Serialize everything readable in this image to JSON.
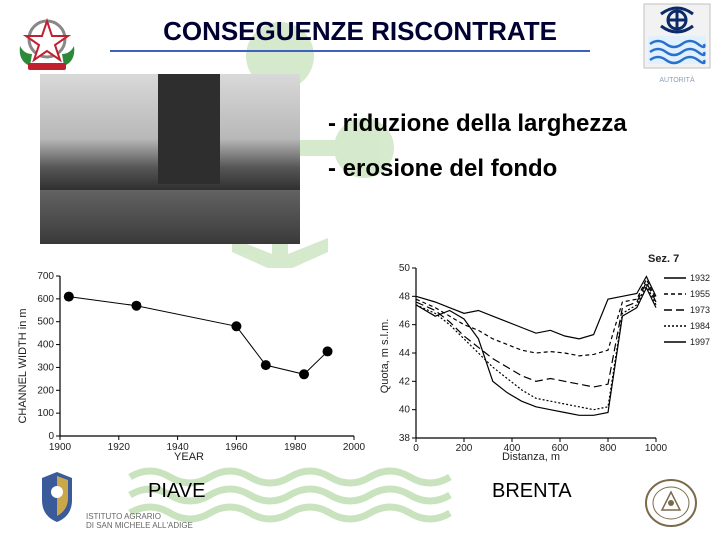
{
  "title": "CONSEGUENZE RISCONTRATE",
  "bullets": [
    "- riduzione della larghezza",
    "- erosione del fondo"
  ],
  "captions": {
    "left": "PIAVE",
    "right": "BRENTA"
  },
  "footer_text": "ISTITUTO AGRARIO\nDI SAN MICHELE ALL'ADIGE",
  "chart_left": {
    "type": "scatter-line",
    "xlabel": "YEAR",
    "ylabel": "CHANNEL WIDTH in m",
    "xlim": [
      1900,
      2000
    ],
    "ylim": [
      0,
      700
    ],
    "xtick_step": 20,
    "ytick_step": 100,
    "grid": false,
    "marker": "circle",
    "marker_size": 5,
    "marker_color": "#000000",
    "line_color": "#000000",
    "line_width": 1,
    "background_color": "#ffffff",
    "points": [
      {
        "x": 1903,
        "y": 610
      },
      {
        "x": 1926,
        "y": 570
      },
      {
        "x": 1960,
        "y": 480
      },
      {
        "x": 1970,
        "y": 310
      },
      {
        "x": 1983,
        "y": 270
      },
      {
        "x": 1991,
        "y": 370
      }
    ]
  },
  "chart_right": {
    "type": "line-multi",
    "title_right": "Sez. 7",
    "xlabel": "Distanza, m",
    "ylabel": "Quota, m s.l.m.",
    "xlim": [
      0,
      1000
    ],
    "ylim": [
      38,
      50
    ],
    "xtick_step": 200,
    "ytick_step": 2,
    "grid": false,
    "background_color": "#ffffff",
    "line_width": 1.2,
    "series": [
      {
        "label": "1932",
        "color": "#000000",
        "dash": "none",
        "points": [
          [
            0,
            48
          ],
          [
            80,
            47.6
          ],
          [
            140,
            47.2
          ],
          [
            200,
            46.8
          ],
          [
            260,
            47.0
          ],
          [
            320,
            46.6
          ],
          [
            380,
            46.2
          ],
          [
            440,
            45.8
          ],
          [
            500,
            45.4
          ],
          [
            560,
            45.6
          ],
          [
            620,
            45.2
          ],
          [
            680,
            45.0
          ],
          [
            740,
            45.3
          ],
          [
            800,
            47.8
          ],
          [
            860,
            48.0
          ],
          [
            920,
            48.2
          ],
          [
            960,
            49.4
          ],
          [
            1000,
            48.0
          ]
        ]
      },
      {
        "label": "1955",
        "color": "#000000",
        "dash": "4,3",
        "points": [
          [
            0,
            47.8
          ],
          [
            80,
            47.2
          ],
          [
            140,
            46.6
          ],
          [
            200,
            46.0
          ],
          [
            260,
            45.6
          ],
          [
            320,
            45.0
          ],
          [
            380,
            44.6
          ],
          [
            440,
            44.2
          ],
          [
            500,
            44.0
          ],
          [
            560,
            44.1
          ],
          [
            620,
            44.0
          ],
          [
            680,
            43.8
          ],
          [
            740,
            43.9
          ],
          [
            800,
            44.2
          ],
          [
            860,
            47.6
          ],
          [
            920,
            47.8
          ],
          [
            960,
            49.2
          ],
          [
            1000,
            47.8
          ]
        ]
      },
      {
        "label": "1973",
        "color": "#000000",
        "dash": "8,4",
        "points": [
          [
            0,
            47.6
          ],
          [
            80,
            47.0
          ],
          [
            140,
            46.2
          ],
          [
            200,
            45.2
          ],
          [
            260,
            44.4
          ],
          [
            320,
            43.6
          ],
          [
            380,
            43.0
          ],
          [
            440,
            42.4
          ],
          [
            500,
            42.0
          ],
          [
            560,
            42.2
          ],
          [
            620,
            42.0
          ],
          [
            680,
            41.8
          ],
          [
            740,
            41.6
          ],
          [
            800,
            41.8
          ],
          [
            860,
            47.2
          ],
          [
            920,
            47.6
          ],
          [
            960,
            49.0
          ],
          [
            1000,
            47.6
          ]
        ]
      },
      {
        "label": "1984",
        "color": "#000000",
        "dash": "2,2",
        "points": [
          [
            0,
            47.4
          ],
          [
            80,
            46.8
          ],
          [
            140,
            46.0
          ],
          [
            200,
            45.0
          ],
          [
            260,
            44.0
          ],
          [
            320,
            43.0
          ],
          [
            380,
            42.2
          ],
          [
            440,
            41.4
          ],
          [
            500,
            40.8
          ],
          [
            560,
            40.6
          ],
          [
            620,
            40.4
          ],
          [
            680,
            40.2
          ],
          [
            740,
            40.0
          ],
          [
            800,
            40.2
          ],
          [
            860,
            46.8
          ],
          [
            920,
            47.4
          ],
          [
            960,
            48.8
          ],
          [
            1000,
            47.4
          ]
        ]
      },
      {
        "label": "1997",
        "color": "#000000",
        "dash": "none",
        "points": [
          [
            0,
            47.4
          ],
          [
            80,
            46.6
          ],
          [
            140,
            47.0
          ],
          [
            200,
            46.4
          ],
          [
            260,
            45.0
          ],
          [
            320,
            42.0
          ],
          [
            380,
            41.2
          ],
          [
            440,
            40.6
          ],
          [
            500,
            40.2
          ],
          [
            560,
            40.0
          ],
          [
            620,
            39.8
          ],
          [
            680,
            39.6
          ],
          [
            740,
            39.6
          ],
          [
            800,
            39.8
          ],
          [
            860,
            46.6
          ],
          [
            920,
            47.2
          ],
          [
            960,
            48.6
          ],
          [
            1000,
            47.2
          ]
        ]
      }
    ]
  },
  "emblem_colors": {
    "green": "#2a8a3a",
    "red": "#c02030",
    "gold": "#caa84a",
    "white": "#ffffff"
  },
  "topright_logo": {
    "top_color": "#0a2a6a",
    "wave_color": "#2a70c8",
    "bg": "#e0f0ff",
    "border": "#c0c0c0",
    "text_color": "#8aa0c0"
  },
  "watermark_color": "#6ab24a",
  "wave_watermark_color": "#6ab24a"
}
